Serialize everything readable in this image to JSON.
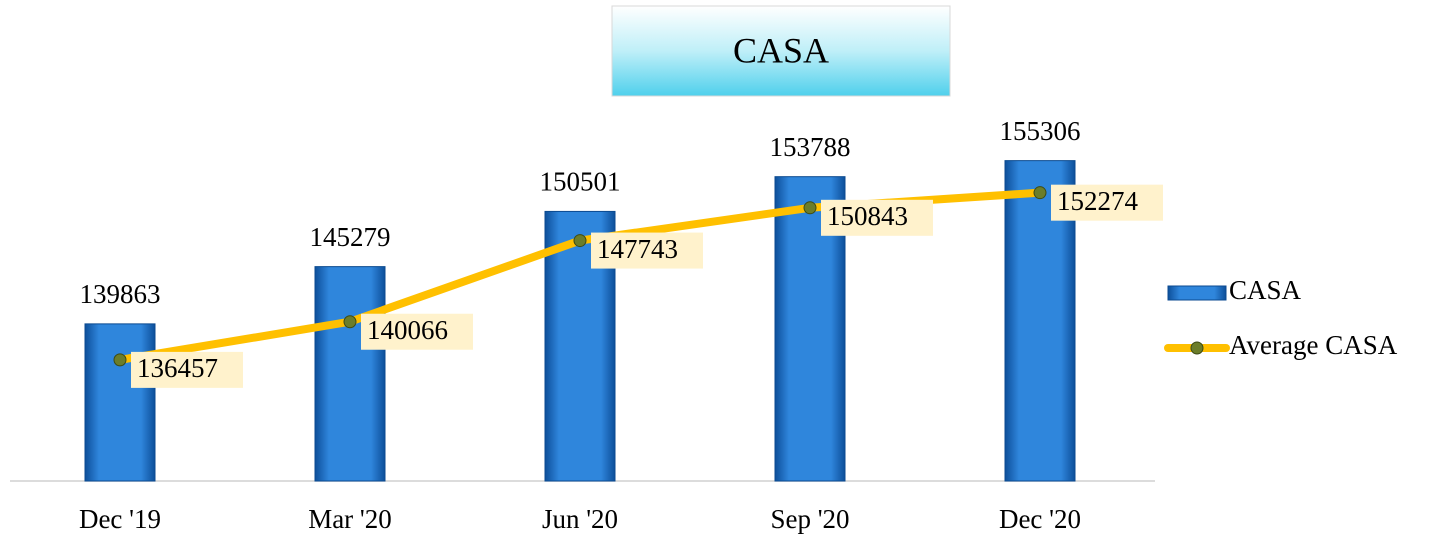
{
  "chart_data": {
    "type": "bar",
    "title": "CASA",
    "categories": [
      "Dec '19",
      "Mar '20",
      "Jun '20",
      "Sep '20",
      "Dec '20"
    ],
    "series": [
      {
        "name": "CASA",
        "type": "bar",
        "color": "#1f6fc5",
        "values": [
          139863,
          145279,
          150501,
          153788,
          155306
        ]
      },
      {
        "name": "Average CASA",
        "type": "line",
        "color": "#ffc000",
        "values": [
          136457,
          140066,
          147743,
          150843,
          152274
        ]
      }
    ],
    "ylim": [
      125000,
      160000
    ],
    "legend": "right"
  }
}
